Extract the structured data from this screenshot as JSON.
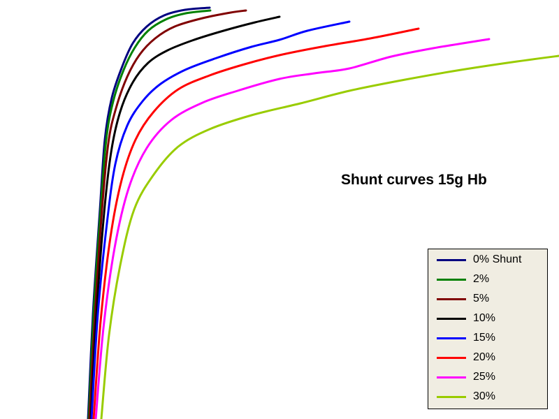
{
  "chart_data": {
    "type": "line",
    "title": "Shunt curves 15g Hb",
    "xlabel": "",
    "ylabel": "",
    "grid": false,
    "legend_position": "bottom-right",
    "series": [
      {
        "name": "0% Shunt",
        "color": "#000080",
        "points": [
          [
            126,
            600
          ],
          [
            133,
            450
          ],
          [
            143,
            300
          ],
          [
            150,
            200
          ],
          [
            160,
            140
          ],
          [
            175,
            95
          ],
          [
            190,
            62
          ],
          [
            210,
            38
          ],
          [
            235,
            22
          ],
          [
            265,
            14
          ],
          [
            300,
            11
          ]
        ]
      },
      {
        "name": "2%",
        "color": "#008000",
        "points": [
          [
            127,
            600
          ],
          [
            134,
            450
          ],
          [
            144,
            300
          ],
          [
            152,
            200
          ],
          [
            162,
            145
          ],
          [
            177,
            100
          ],
          [
            193,
            68
          ],
          [
            212,
            44
          ],
          [
            237,
            28
          ],
          [
            266,
            19
          ],
          [
            301,
            15
          ]
        ]
      },
      {
        "name": "5%",
        "color": "#800000",
        "points": [
          [
            128,
            600
          ],
          [
            136,
            450
          ],
          [
            146,
            300
          ],
          [
            155,
            205
          ],
          [
            166,
            155
          ],
          [
            182,
            110
          ],
          [
            200,
            78
          ],
          [
            222,
            55
          ],
          [
            250,
            38
          ],
          [
            290,
            26
          ],
          [
            330,
            18
          ],
          [
            352,
            15
          ]
        ]
      },
      {
        "name": "10%",
        "color": "#000000",
        "points": [
          [
            130,
            600
          ],
          [
            138,
            450
          ],
          [
            149,
            305
          ],
          [
            159,
            218
          ],
          [
            172,
            160
          ],
          [
            190,
            118
          ],
          [
            212,
            90
          ],
          [
            240,
            72
          ],
          [
            275,
            58
          ],
          [
            320,
            44
          ],
          [
            365,
            32
          ],
          [
            400,
            24
          ]
        ]
      },
      {
        "name": "15%",
        "color": "#0000ff",
        "points": [
          [
            131,
            600
          ],
          [
            140,
            450
          ],
          [
            153,
            320
          ],
          [
            165,
            235
          ],
          [
            182,
            180
          ],
          [
            204,
            145
          ],
          [
            230,
            120
          ],
          [
            265,
            100
          ],
          [
            310,
            83
          ],
          [
            360,
            67
          ],
          [
            400,
            57
          ],
          [
            440,
            44
          ],
          [
            500,
            31
          ]
        ]
      },
      {
        "name": "20%",
        "color": "#ff0000",
        "points": [
          [
            134,
            600
          ],
          [
            144,
            460
          ],
          [
            158,
            340
          ],
          [
            174,
            258
          ],
          [
            194,
            200
          ],
          [
            220,
            160
          ],
          [
            255,
            128
          ],
          [
            300,
            108
          ],
          [
            350,
            92
          ],
          [
            400,
            79
          ],
          [
            460,
            67
          ],
          [
            530,
            55
          ],
          [
            599,
            41
          ]
        ]
      },
      {
        "name": "25%",
        "color": "#ff00ff",
        "points": [
          [
            137,
            600
          ],
          [
            148,
            470
          ],
          [
            164,
            355
          ],
          [
            184,
            270
          ],
          [
            210,
            212
          ],
          [
            245,
            172
          ],
          [
            290,
            147
          ],
          [
            340,
            130
          ],
          [
            400,
            113
          ],
          [
            450,
            105
          ],
          [
            500,
            98
          ],
          [
            560,
            81
          ],
          [
            620,
            69
          ],
          [
            700,
            56
          ]
        ]
      },
      {
        "name": "30%",
        "color": "#99cc00",
        "points": [
          [
            145,
            600
          ],
          [
            156,
            480
          ],
          [
            172,
            380
          ],
          [
            192,
            300
          ],
          [
            220,
            250
          ],
          [
            255,
            210
          ],
          [
            300,
            185
          ],
          [
            360,
            165
          ],
          [
            430,
            148
          ],
          [
            500,
            130
          ],
          [
            580,
            114
          ],
          [
            660,
            100
          ],
          [
            740,
            88
          ],
          [
            800,
            80
          ]
        ]
      }
    ]
  }
}
